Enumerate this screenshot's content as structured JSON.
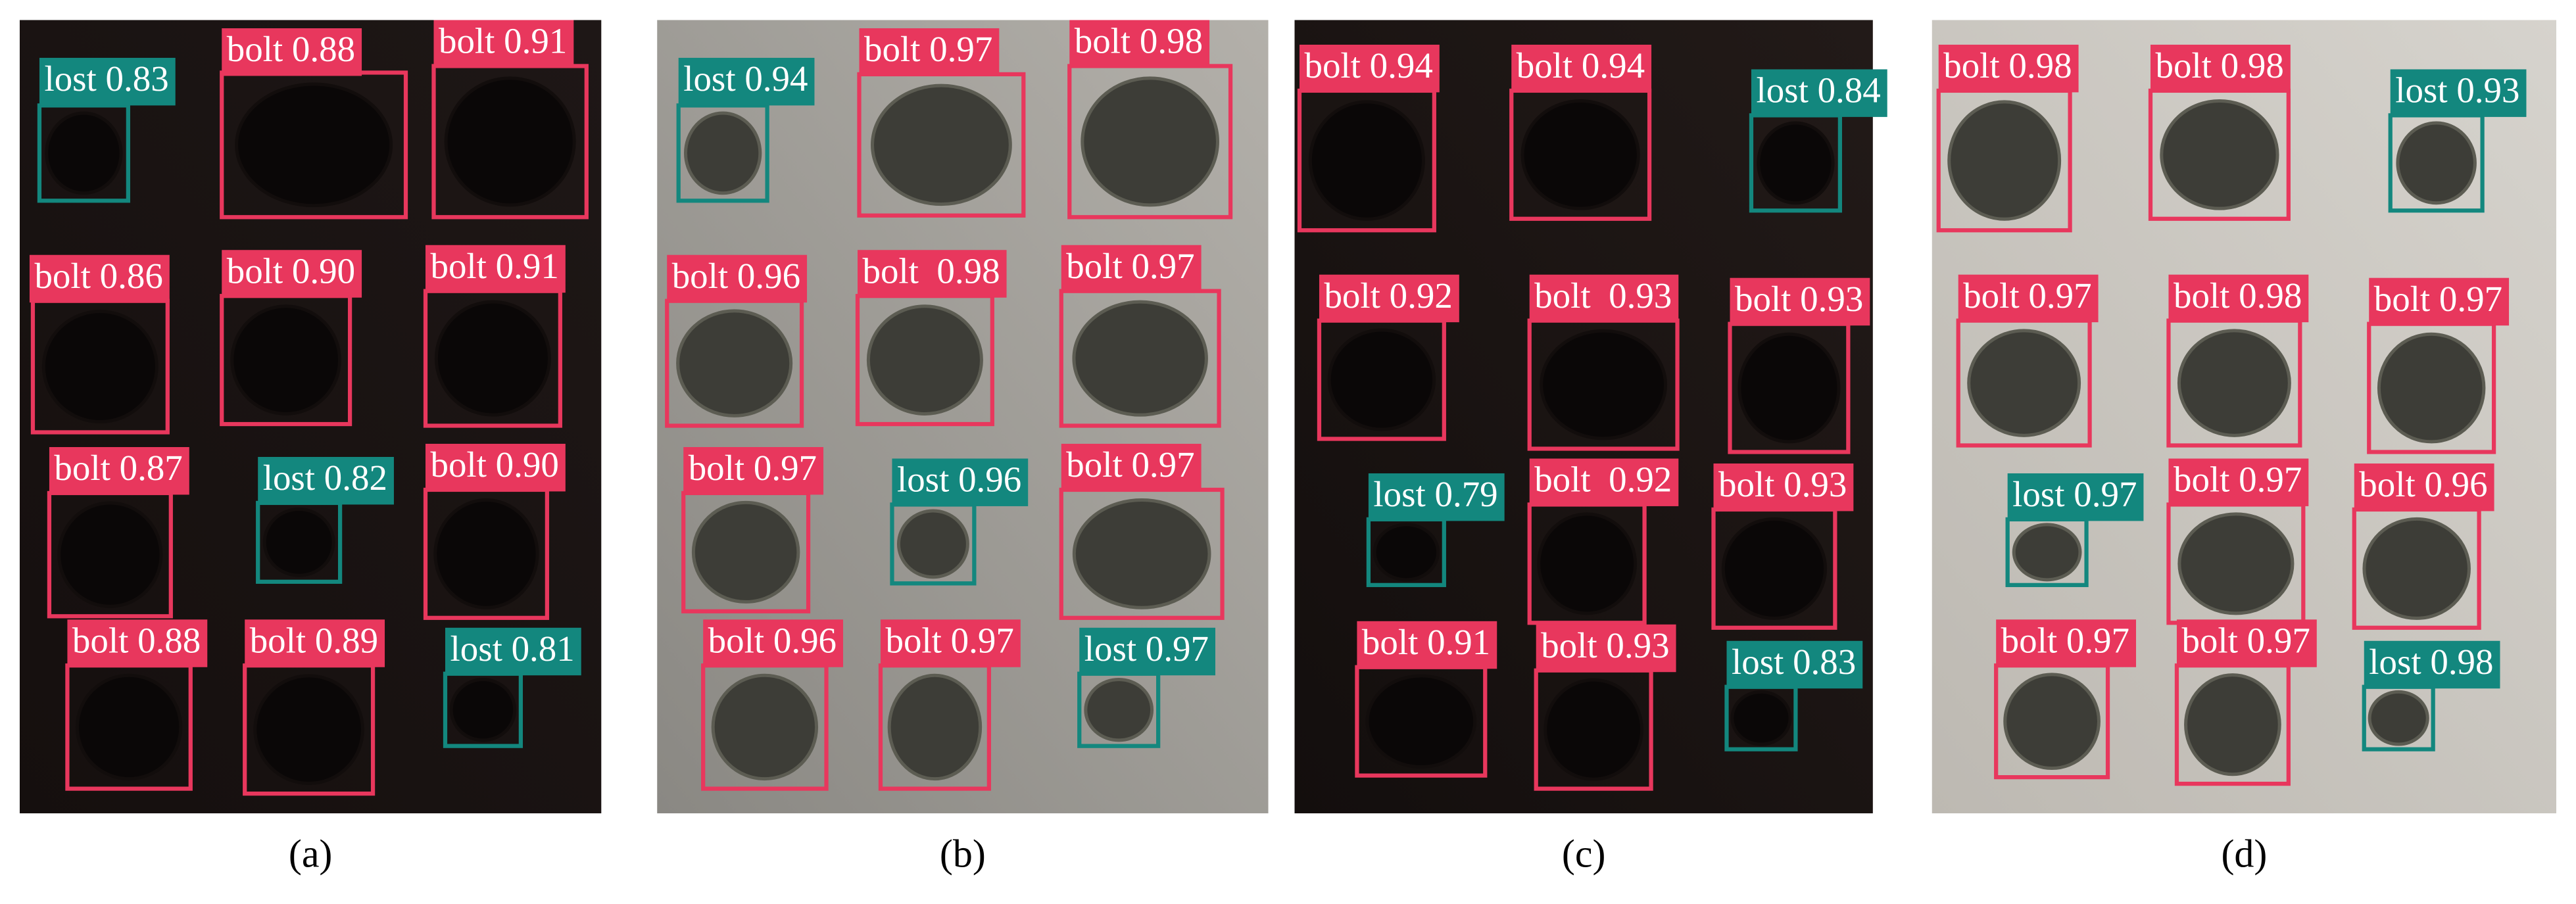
{
  "panels": [
    {
      "caption": "(a)",
      "detections": [
        {
          "label": "lost 0.83",
          "color": "#13877e"
        },
        {
          "label": "bolt 0.88",
          "color": "#e8375d"
        },
        {
          "label": "bolt 0.91",
          "color": "#e8375d"
        },
        {
          "label": "bolt 0.86",
          "color": "#e8375d"
        },
        {
          "label": "bolt 0.90",
          "color": "#e8375d"
        },
        {
          "label": "bolt 0.91",
          "color": "#e8375d"
        },
        {
          "label": "bolt 0.87",
          "color": "#e8375d"
        },
        {
          "label": "lost 0.82",
          "color": "#13877e"
        },
        {
          "label": "bolt 0.90",
          "color": "#e8375d"
        },
        {
          "label": "bolt 0.88",
          "color": "#e8375d"
        },
        {
          "label": "bolt 0.89",
          "color": "#e8375d"
        },
        {
          "label": "lost 0.81",
          "color": "#13877e"
        }
      ]
    },
    {
      "caption": "(b)",
      "detections": [
        {
          "label": "lost 0.94",
          "color": "#13877e"
        },
        {
          "label": "bolt 0.97",
          "color": "#e8375d"
        },
        {
          "label": "bolt 0.98",
          "color": "#e8375d"
        },
        {
          "label": "bolt 0.96",
          "color": "#e8375d"
        },
        {
          "label": "bolt  0.98",
          "color": "#e8375d"
        },
        {
          "label": "bolt 0.97",
          "color": "#e8375d"
        },
        {
          "label": "bolt 0.97",
          "color": "#e8375d"
        },
        {
          "label": "lost 0.96",
          "color": "#13877e"
        },
        {
          "label": "bolt 0.97",
          "color": "#e8375d"
        },
        {
          "label": "bolt 0.96",
          "color": "#e8375d"
        },
        {
          "label": "bolt 0.97",
          "color": "#e8375d"
        },
        {
          "label": "lost 0.97",
          "color": "#13877e"
        }
      ]
    },
    {
      "caption": "(c)",
      "detections": [
        {
          "label": "bolt 0.94",
          "color": "#e8375d"
        },
        {
          "label": "bolt 0.94",
          "color": "#e8375d"
        },
        {
          "label": "lost 0.84",
          "color": "#13877e"
        },
        {
          "label": "bolt 0.92",
          "color": "#e8375d"
        },
        {
          "label": "bolt  0.93",
          "color": "#e8375d"
        },
        {
          "label": "bolt 0.93",
          "color": "#e8375d"
        },
        {
          "label": "lost 0.79",
          "color": "#13877e"
        },
        {
          "label": "bolt  0.92",
          "color": "#e8375d"
        },
        {
          "label": "bolt 0.93",
          "color": "#e8375d"
        },
        {
          "label": "bolt 0.91",
          "color": "#e8375d"
        },
        {
          "label": "bolt 0.93",
          "color": "#e8375d"
        },
        {
          "label": "lost 0.83",
          "color": "#13877e"
        }
      ]
    },
    {
      "caption": "(d)",
      "detections": [
        {
          "label": "bolt 0.98",
          "color": "#e8375d"
        },
        {
          "label": "bolt 0.98",
          "color": "#e8375d"
        },
        {
          "label": "lost 0.93",
          "color": "#13877e"
        },
        {
          "label": "bolt 0.97",
          "color": "#e8375d"
        },
        {
          "label": "bolt 0.98",
          "color": "#e8375d"
        },
        {
          "label": "bolt 0.97",
          "color": "#e8375d"
        },
        {
          "label": "lost 0.97",
          "color": "#13877e"
        },
        {
          "label": "bolt 0.97",
          "color": "#e8375d"
        },
        {
          "label": "bolt 0.96",
          "color": "#e8375d"
        },
        {
          "label": "bolt 0.97",
          "color": "#e8375d"
        },
        {
          "label": "bolt 0.97",
          "color": "#e8375d"
        },
        {
          "label": "lost 0.98",
          "color": "#13877e"
        }
      ]
    }
  ]
}
